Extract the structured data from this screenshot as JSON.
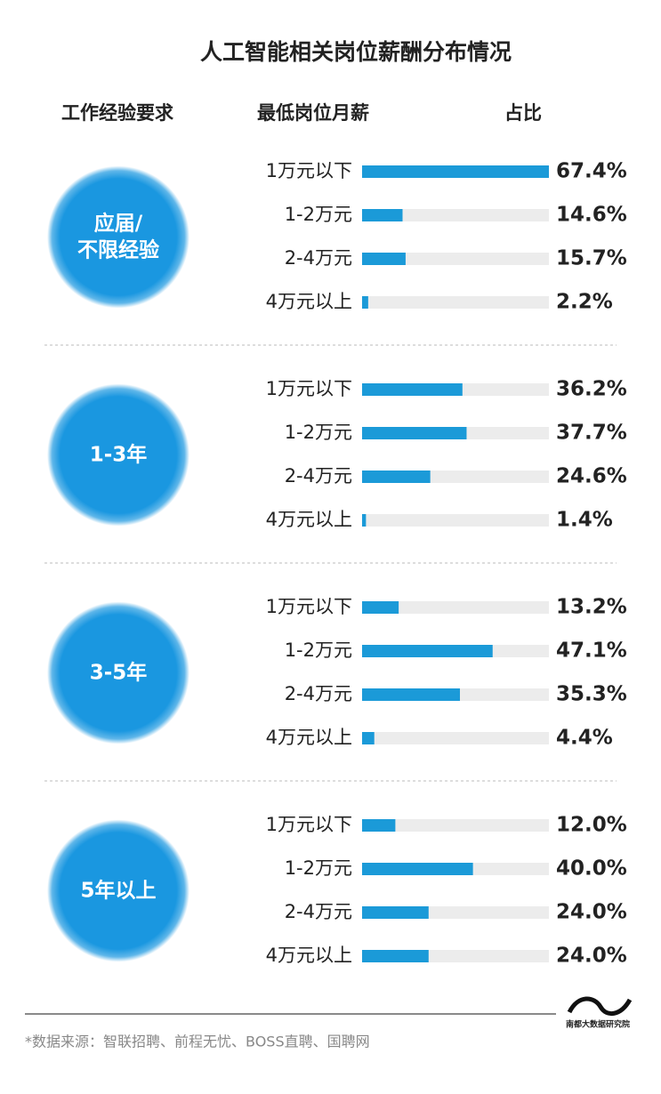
{
  "chart_data": {
    "type": "bar",
    "title": "人工智能相关岗位薪酬分布情况",
    "column_headers": [
      "工作经验要求",
      "最低岗位月薪",
      "占比"
    ],
    "xlim": [
      0,
      67.4
    ],
    "color": "#1b9ad8",
    "groups": [
      {
        "name": "应届/\n不限经验",
        "categories": [
          "1万元以下",
          "1-2万元",
          "2-4万元",
          "4万元以上"
        ],
        "values": [
          67.4,
          14.6,
          15.7,
          2.2
        ],
        "value_labels": [
          "67.4%",
          "14.6%",
          "15.7%",
          "2.2%"
        ]
      },
      {
        "name": "1-3年",
        "categories": [
          "1万元以下",
          "1-2万元",
          "2-4万元",
          "4万元以上"
        ],
        "values": [
          36.2,
          37.7,
          24.6,
          1.4
        ],
        "value_labels": [
          "36.2%",
          "37.7%",
          "24.6%",
          "1.4%"
        ]
      },
      {
        "name": "3-5年",
        "categories": [
          "1万元以下",
          "1-2万元",
          "2-4万元",
          "4万元以上"
        ],
        "values": [
          13.2,
          47.1,
          35.3,
          4.4
        ],
        "value_labels": [
          "13.2%",
          "47.1%",
          "35.3%",
          "4.4%"
        ]
      },
      {
        "name": "5年以上",
        "categories": [
          "1万元以下",
          "1-2万元",
          "2-4万元",
          "4万元以上"
        ],
        "values": [
          12.0,
          40.0,
          24.0,
          24.0
        ],
        "value_labels": [
          "12.0%",
          "40.0%",
          "24.0%",
          "24.0%"
        ]
      }
    ],
    "source": "*数据来源：智联招聘、前程无忧、BOSS直聘、国聘网",
    "logo": "南都大数据研究院"
  }
}
